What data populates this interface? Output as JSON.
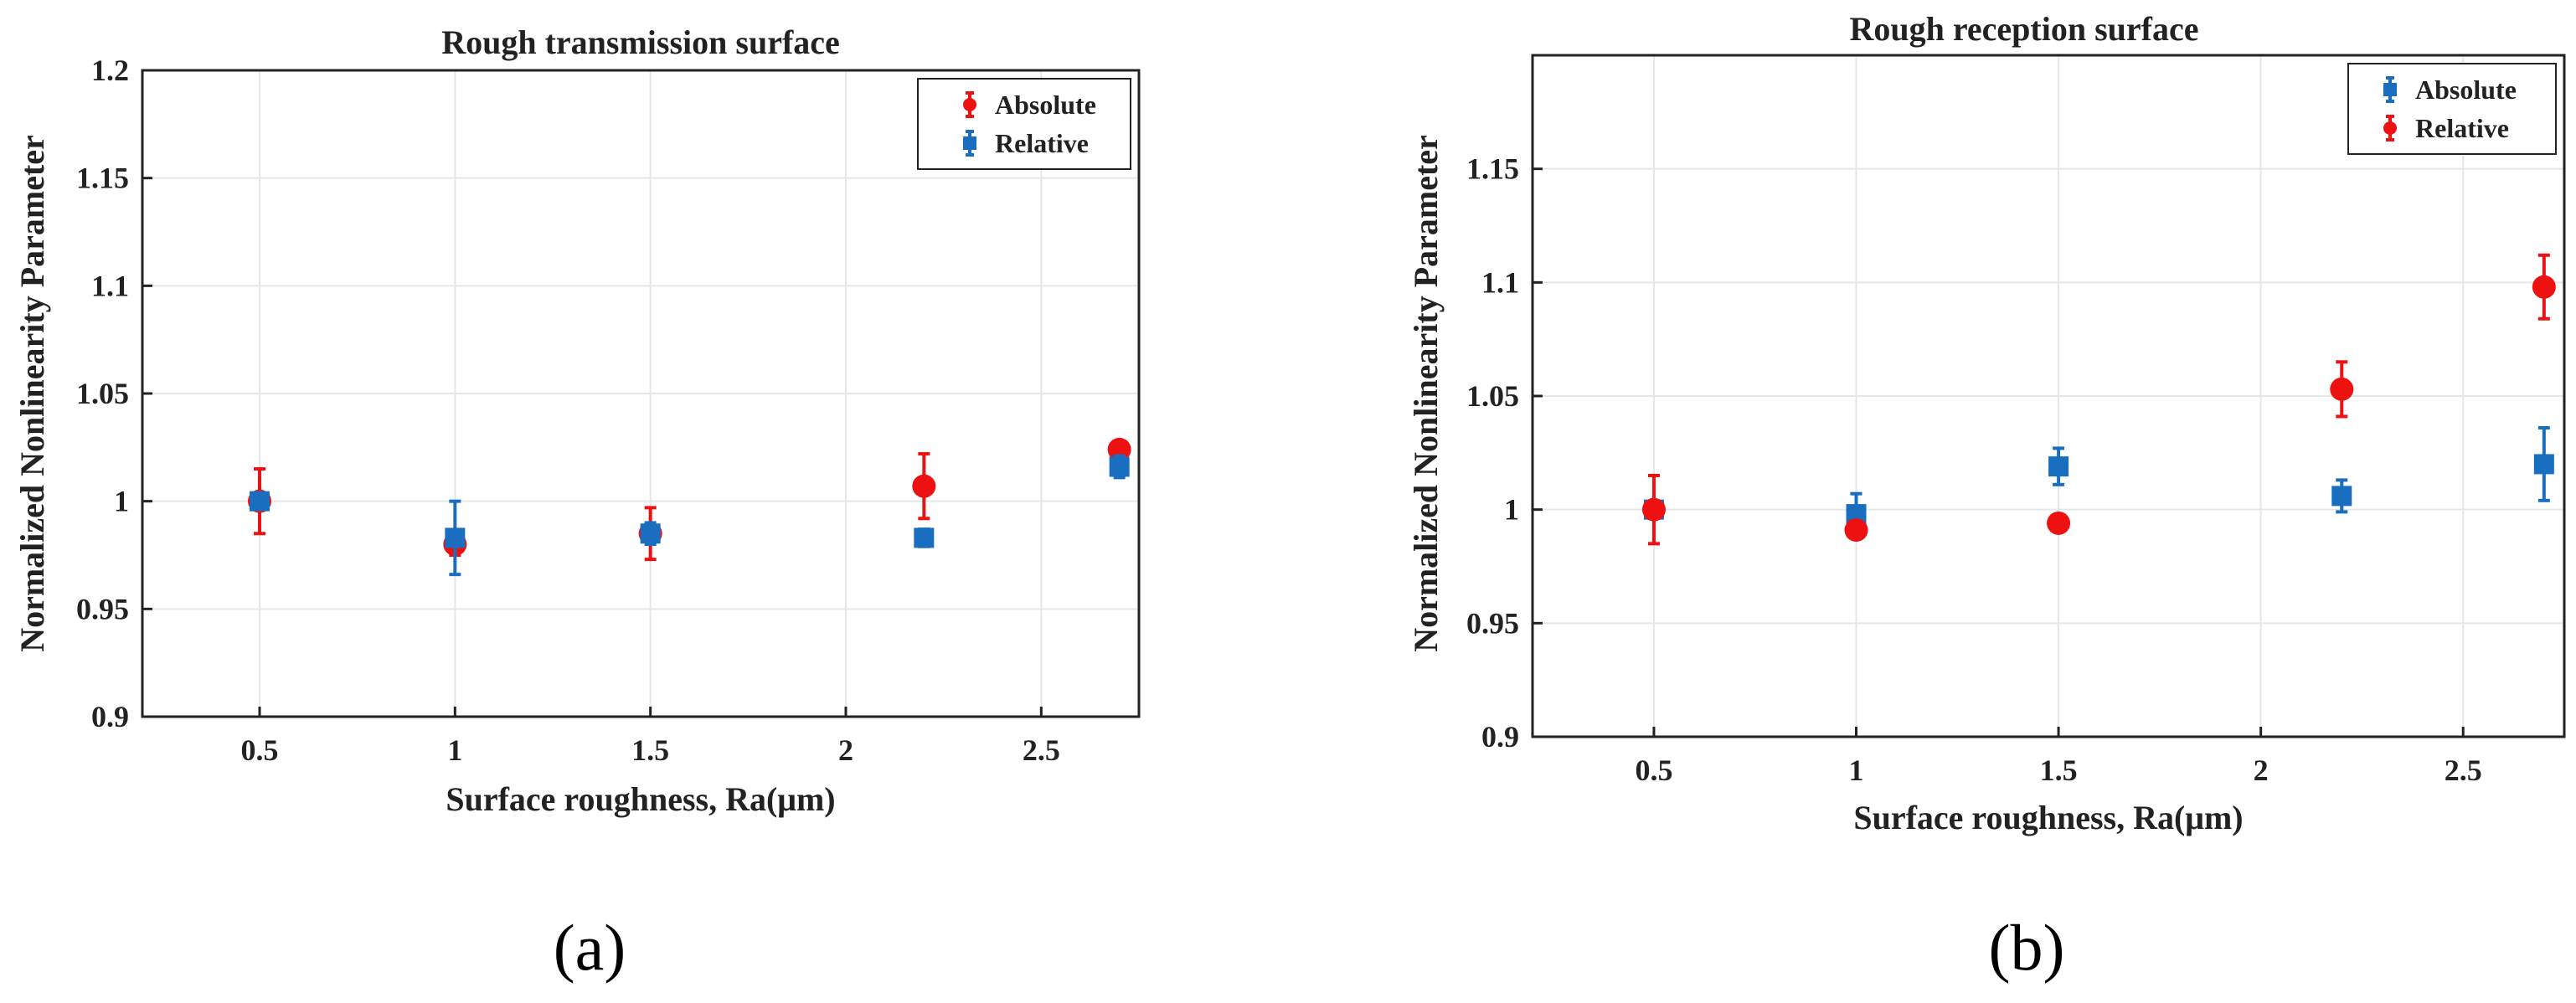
{
  "chart_data": [
    {
      "type": "scatter",
      "title": "Rough transmission surface",
      "xlabel": "Surface roughness, Ra(μm)",
      "ylabel": "Normalized Nonlinearity Parameter",
      "xlim": [
        0.2,
        2.75
      ],
      "ylim": [
        0.9,
        1.2
      ],
      "xticks": [
        0.5,
        1,
        1.5,
        2,
        2.5
      ],
      "xtick_labels": [
        "0.5",
        "1",
        "1.5",
        "2",
        "2.5"
      ],
      "yticks": [
        0.9,
        0.95,
        1.0,
        1.05,
        1.1,
        1.15,
        1.2
      ],
      "ytick_labels": [
        "0.9",
        "0.95",
        "1",
        "1.05",
        "1.1",
        "1.15",
        "1.2"
      ],
      "grid": true,
      "legend_position": "top-right",
      "caption": "(a)",
      "series": [
        {
          "name": "Absolute",
          "color": "#ee1111",
          "marker": "circle",
          "x": [
            0.5,
            1.0,
            1.5,
            2.2,
            2.7
          ],
          "y": [
            1.0,
            0.98,
            0.985,
            1.007,
            1.024
          ],
          "err": [
            0.015,
            0.005,
            0.012,
            0.015,
            0.003
          ]
        },
        {
          "name": "Relative",
          "color": "#1a6ec0",
          "marker": "square",
          "x": [
            0.5,
            1.0,
            1.5,
            2.2,
            2.7
          ],
          "y": [
            1.0,
            0.983,
            0.985,
            0.983,
            1.016
          ],
          "err": [
            0.003,
            0.017,
            0.005,
            0.004,
            0.005
          ]
        }
      ]
    },
    {
      "type": "scatter",
      "title": "Rough reception surface",
      "xlabel": "Surface roughness, Ra(μm)",
      "ylabel": "Normalized Nonlinearity Parameter",
      "xlim": [
        0.2,
        2.75
      ],
      "ylim": [
        0.9,
        1.2
      ],
      "xticks": [
        0.5,
        1,
        1.5,
        2,
        2.5
      ],
      "xtick_labels": [
        "0.5",
        "1",
        "1.5",
        "2",
        "2.5"
      ],
      "yticks": [
        0.9,
        0.95,
        1.0,
        1.05,
        1.1,
        1.15
      ],
      "ytick_labels": [
        "0.9",
        "0.95",
        "1",
        "1.05",
        "1.1",
        "1.15"
      ],
      "grid": true,
      "legend_position": "top-right",
      "caption": "(b)",
      "series": [
        {
          "name": "Absolute",
          "color": "#1a6ec0",
          "marker": "square",
          "x": [
            0.5,
            1.0,
            1.5,
            2.2,
            2.7
          ],
          "y": [
            1.0,
            0.998,
            1.019,
            1.006,
            1.02
          ],
          "err": [
            0.002,
            0.009,
            0.008,
            0.007,
            0.016
          ]
        },
        {
          "name": "Relative",
          "color": "#ee1111",
          "marker": "circle",
          "x": [
            0.5,
            1.0,
            1.5,
            2.2,
            2.7
          ],
          "y": [
            1.0,
            0.991,
            0.994,
            1.053,
            1.098
          ],
          "err": [
            0.015,
            0.002,
            0.002,
            0.012,
            0.014
          ]
        }
      ]
    }
  ]
}
